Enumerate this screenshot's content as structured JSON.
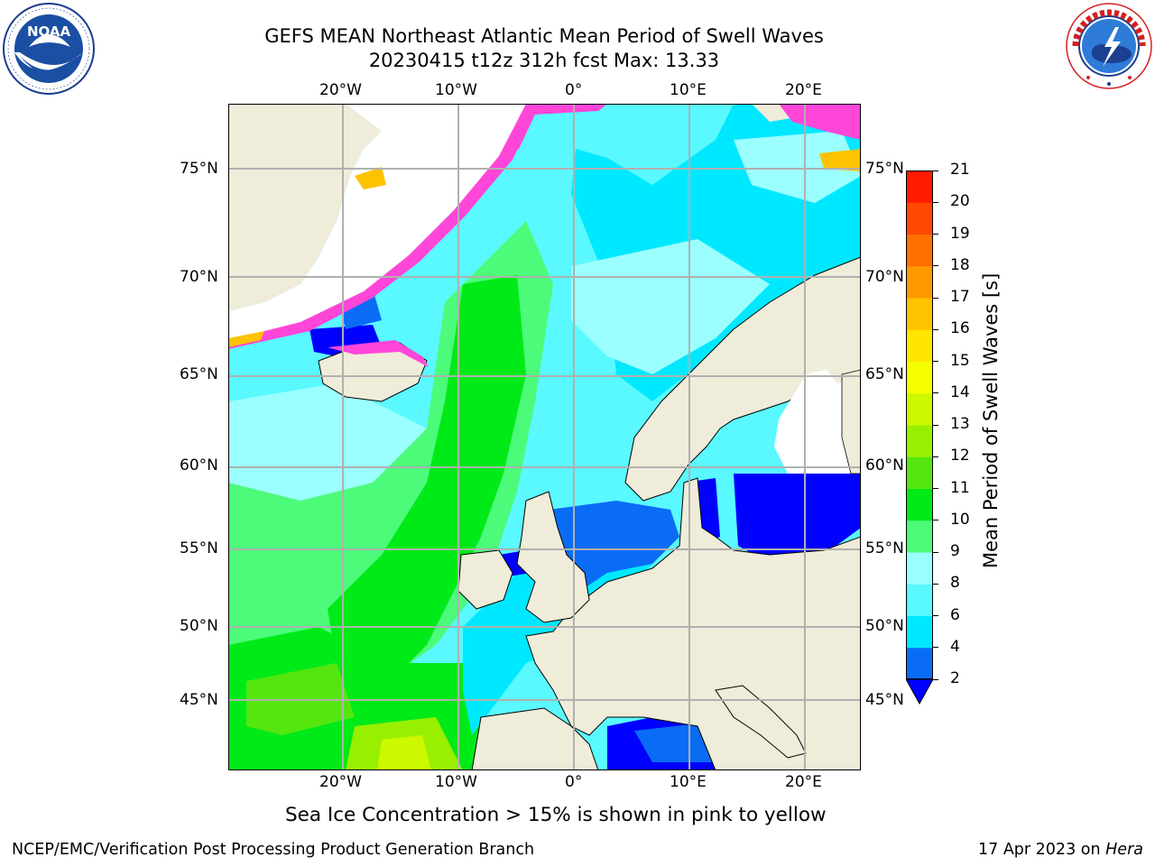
{
  "title": {
    "line1": "GEFS MEAN Northeast Atlantic Mean Period of Swell Waves",
    "line2": "20230415 t12z 312h fcst   Max: 13.33"
  },
  "logos": {
    "left": {
      "name": "noaa-logo",
      "text": "NOAA",
      "ring_text": "NATIONAL OCEANIC AND ATMOSPHERIC ADMINISTRATION · U.S. DEPARTMENT OF COMMERCE"
    },
    "right": {
      "name": "nws-logo",
      "ring_text": "NATIONAL WEATHER SERVICE"
    }
  },
  "map": {
    "region": "Northeast Atlantic",
    "x_ticks": [
      "20°W",
      "10°W",
      "0°",
      "10°E",
      "20°E"
    ],
    "y_ticks": [
      "75°N",
      "70°N",
      "65°N",
      "60°N",
      "55°N",
      "50°N",
      "45°N"
    ],
    "colors": {
      "land": "#efecd9",
      "ice_free_white": "#ffffff",
      "gridline": "#b0b0b0"
    }
  },
  "colorbar": {
    "label": "Mean Period of Swell Waves [s]",
    "ticks": [
      "2",
      "4",
      "6",
      "8",
      "9",
      "10",
      "11",
      "12",
      "13",
      "14",
      "15",
      "16",
      "17",
      "18",
      "19",
      "20",
      "21"
    ],
    "colors": [
      "#0a6cf5",
      "#00e8ff",
      "#5af8ff",
      "#9cffff",
      "#4dfb7a",
      "#00ea18",
      "#55e610",
      "#98ef00",
      "#ccf800",
      "#f6ff00",
      "#ffe500",
      "#ffc200",
      "#ff9900",
      "#ff7000",
      "#ff4800",
      "#ff1a00"
    ],
    "under_color": "#0000ff"
  },
  "note": "Sea Ice Concentration > 15% is shown in pink to yellow",
  "footer": {
    "left": "NCEP/EMC/Verification Post Processing Product Generation Branch",
    "right_date": "17 Apr 2023 on ",
    "right_host": "Hera"
  }
}
